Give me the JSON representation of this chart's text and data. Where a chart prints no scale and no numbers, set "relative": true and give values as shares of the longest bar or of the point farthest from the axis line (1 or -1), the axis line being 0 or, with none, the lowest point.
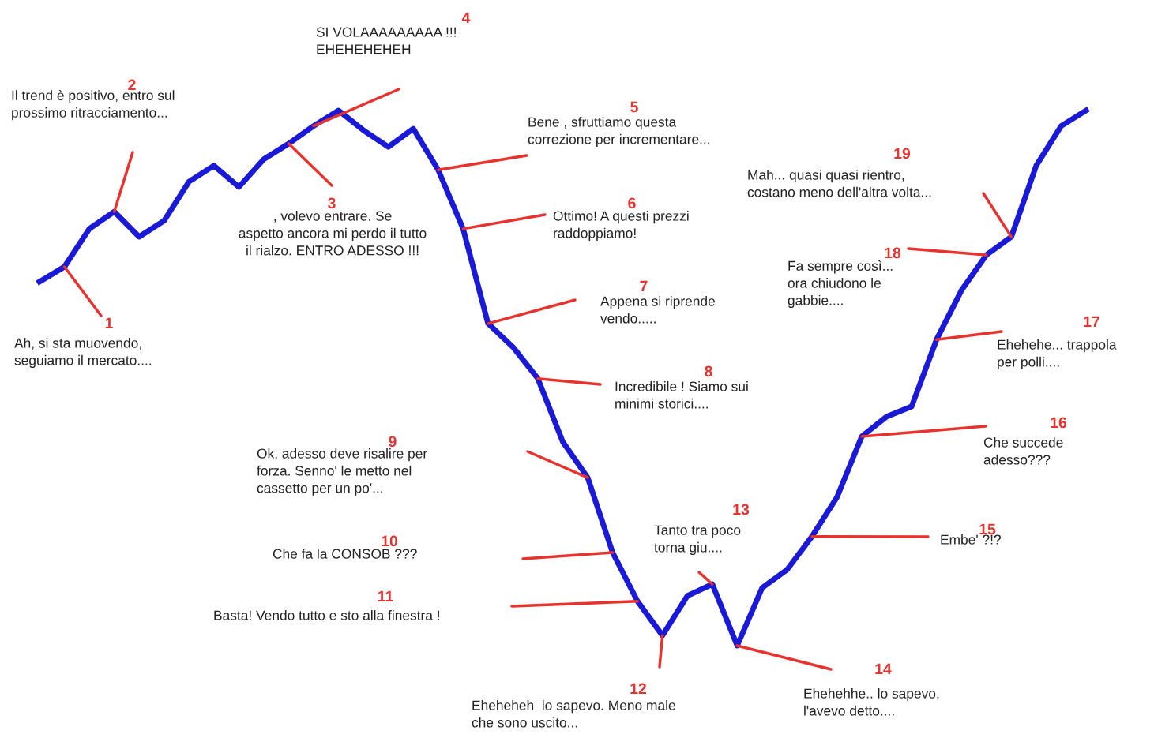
{
  "chart_data": {
    "type": "line",
    "relative": true,
    "categories": [
      null,
      null,
      null,
      null,
      null,
      null,
      null,
      null,
      null,
      null,
      null,
      null,
      null,
      null,
      null,
      null,
      null,
      null,
      null,
      null,
      null,
      null,
      null,
      null,
      null,
      null,
      null,
      null,
      null,
      null,
      null,
      null,
      null,
      null,
      null,
      null,
      null,
      null,
      null,
      null,
      null,
      null,
      null
    ],
    "series": [
      {
        "color": "#1a1ad6",
        "values": [
          0.68,
          0.708,
          0.779,
          0.811,
          0.764,
          0.794,
          0.867,
          0.897,
          0.857,
          0.909,
          0.938,
          0.971,
          1.0,
          0.963,
          0.932,
          0.966,
          0.889,
          0.779,
          0.602,
          0.558,
          0.499,
          0.381,
          0.314,
          0.174,
          0.083,
          0.019,
          0.093,
          0.115,
          0,
          0.108,
          0.142,
          0.204,
          0.277,
          0.391,
          0.428,
          0.447,
          0.572,
          0.664,
          0.73,
          0.764,
          0.897,
          0.971,
          1.0
        ]
      }
    ],
    "annotations": [
      "1",
      "Ah, si sta muovendo,\nseguiamo il mercato....",
      "2",
      "Il trend è positivo, entro sul\nprossimo ritracciamento...",
      "3",
      ", volevo entrare. Se\naspetto ancora mi perdo il tutto\nil rialzo. ENTRO ADESSO !!!",
      "4",
      "SI VOLAAAAAAAAA !!!\nEHEHEHEHEH",
      "5",
      "Bene , sfruttiamo questa\ncorrezione per incrementare...",
      "6",
      "Ottimo! A questi prezzi\nraddoppiamo!",
      "7",
      "Appena si riprende\nvendo.....",
      "8",
      "Incredibile ! Siamo sui\nminimi storici....",
      "9",
      "Ok, adesso deve risalire per\nforza. Senno' le metto nel\ncassetto per un po'...",
      "10",
      "Che fa la CONSOB ???",
      "11",
      "Basta! Vendo tutto e sto alla finestra !",
      "12",
      "Eheheheh  lo sapevo. Meno male\nche sono uscito...",
      "13",
      "Tanto tra poco\ntorna giu....",
      "14",
      "Ehehehhe.. lo sapevo,\nl'avevo detto....",
      "15",
      "Embe' ?!?",
      "16",
      "Che succede\nadesso???",
      "17",
      "Ehehehe... trappola\nper polli....",
      "18",
      "Fa sempre così...\nora chiudono le\ngabbie....",
      "19",
      "Mah... quasi quasi rientro,\ncostano meno dell'altra volta..."
    ]
  }
}
